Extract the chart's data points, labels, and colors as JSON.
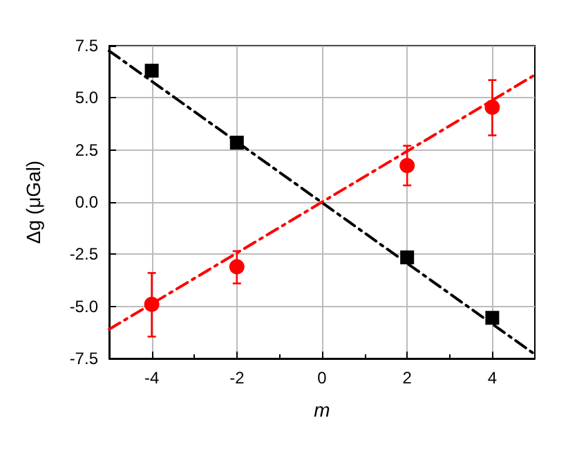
{
  "chart_data": {
    "type": "scatter",
    "xlabel": "m",
    "ylabel": "Δg (μGal)",
    "xlim": [
      -5,
      5
    ],
    "xticks": [
      -4,
      -2,
      0,
      2,
      4
    ],
    "ylim": [
      -7.5,
      7.5
    ],
    "yticks": [
      -7.5,
      {
        "value": -5,
        "label": "-5.0"
      },
      -2.5,
      {
        "value": 0,
        "label": "0.0"
      },
      2.5,
      {
        "value": 5,
        "label": "5.0"
      },
      7.5
    ],
    "grid": true,
    "series": [
      {
        "type": "line",
        "color": "#000000",
        "x": [
          -5,
          5
        ],
        "values": [
          7.25,
          -7.3
        ],
        "marker": "none",
        "line_style": "dashed"
      },
      {
        "type": "line",
        "color": "#ff0000",
        "x": [
          -5,
          5
        ],
        "values": [
          -6.1,
          6.1
        ],
        "marker": "none",
        "line_style": "dashed"
      },
      {
        "color": "#000000",
        "x": [
          -4,
          -2,
          2,
          4
        ],
        "values": [
          6.3,
          2.85,
          -2.65,
          -5.55
        ],
        "marker": "square"
      },
      {
        "color": "#ff0000",
        "x": [
          -4,
          -2,
          2,
          4
        ],
        "values": [
          -4.9,
          -3.1,
          1.75,
          4.55
        ],
        "marker": "circle",
        "errors": [
          [
            -6.45,
            -3.4
          ],
          [
            -3.9,
            -2.35
          ],
          [
            0.8,
            2.7
          ],
          [
            3.2,
            5.85
          ]
        ]
      }
    ]
  }
}
